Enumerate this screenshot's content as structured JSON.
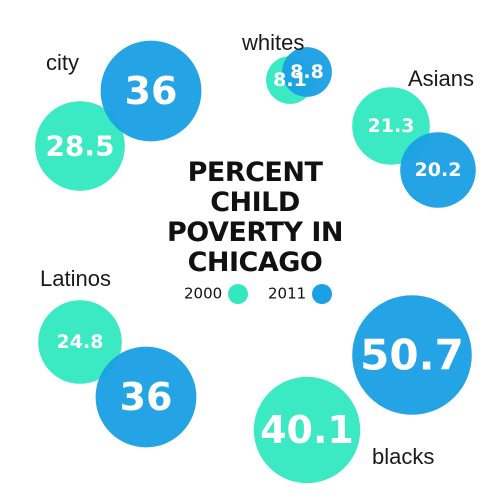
{
  "title_lines": [
    "PERCENT",
    "CHILD",
    "POVERTY IN",
    "CHICAGO"
  ],
  "legend": {
    "items": [
      {
        "label": "2000",
        "color": "#33e8c0"
      },
      {
        "label": "2011",
        "color": "#1ba0e3"
      }
    ]
  },
  "colors": {
    "year_2000": "#33e8c0",
    "year_2011": "#1ba0e3",
    "text_on_bubble": "#ffffff"
  },
  "chart_data": {
    "type": "bubble",
    "title": "PERCENT CHILD POVERTY IN CHICAGO",
    "series": [
      {
        "name": "2000",
        "color": "#33e8c0"
      },
      {
        "name": "2011",
        "color": "#1ba0e3"
      }
    ],
    "groups": [
      {
        "label": "city",
        "values": {
          "2000": 28.5,
          "2011": 36
        },
        "display": {
          "2000": "28.5",
          "2011": "36"
        }
      },
      {
        "label": "whites",
        "values": {
          "2000": 8.1,
          "2011": 8.8
        },
        "display": {
          "2000": "8.1",
          "2011": "8.8"
        }
      },
      {
        "label": "Asians",
        "values": {
          "2000": 21.3,
          "2011": 20.2
        },
        "display": {
          "2000": "21.3",
          "2011": "20.2"
        }
      },
      {
        "label": "Latinos",
        "values": {
          "2000": 24.8,
          "2011": 36
        },
        "display": {
          "2000": "24.8",
          "2011": "36"
        }
      },
      {
        "label": "blacks",
        "values": {
          "2000": 40.1,
          "2011": 50.7
        },
        "display": {
          "2000": "40.1",
          "2011": "50.7"
        }
      }
    ]
  }
}
